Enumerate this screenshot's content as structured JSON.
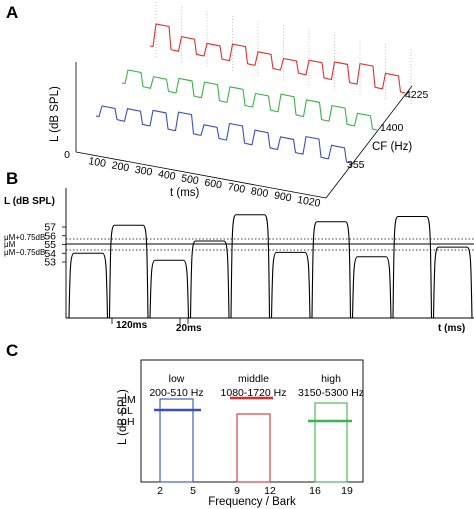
{
  "panel_a": {
    "label": "A",
    "y_axis_label": "L (dB SPL)",
    "y_ticks": [
      "0"
    ],
    "x_axis_label": "t (ms)",
    "x_ticks": [
      "100",
      "200",
      "300",
      "400",
      "500",
      "600",
      "700",
      "800",
      "900",
      "1020"
    ],
    "depth_axis_label": "CF (Hz)",
    "depth_ticks": [
      "355",
      "1400",
      "4225"
    ],
    "colors": {
      "low": "#3a4fc0",
      "middle": "#39b54a",
      "high": "#e03030"
    }
  },
  "panel_b": {
    "label": "B",
    "y_axis_label": "L (dB SPL)",
    "y_ticks": [
      "57",
      "56",
      "55",
      "54",
      "53"
    ],
    "ref_labels": [
      "μM+0.75dB",
      "μM",
      "μM−0.75dB"
    ],
    "x_axis_label": "t (ms)",
    "dur_labels": [
      "120ms",
      "20ms"
    ],
    "tone_levels_db": [
      54,
      57.2,
      53.2,
      55.4,
      58.4,
      54.1,
      57.6,
      53.6,
      58.2,
      54.7
    ]
  },
  "panel_c": {
    "label": "C",
    "y_axis_label": "L (dB SPL)",
    "y_ticks": [
      "μM",
      "μL",
      "μH"
    ],
    "x_axis_label": "Frequency / Bark",
    "x_ticks": [
      "2",
      "5",
      "9",
      "12",
      "16",
      "19"
    ],
    "bands": [
      {
        "name": "low",
        "range": "200-510 Hz",
        "color": "#3a4fc0"
      },
      {
        "name": "middle",
        "range": "1080-1720 Hz",
        "color": "#d43030"
      },
      {
        "name": "high",
        "range": "3150-5300 Hz",
        "color": "#39b54a"
      }
    ]
  }
}
